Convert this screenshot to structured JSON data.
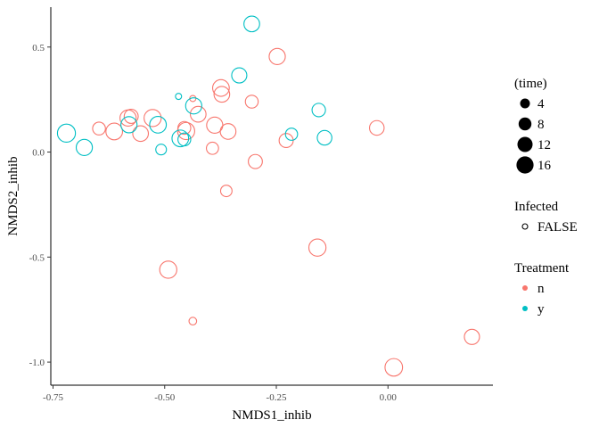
{
  "chart_data": {
    "type": "scatter",
    "title": "",
    "xlabel": "NMDS1_inhib",
    "ylabel": "NMDS2_inhib",
    "xlim": [
      -0.755,
      0.235
    ],
    "ylim": [
      -1.11,
      0.69
    ],
    "x_ticks": [
      -0.75,
      -0.5,
      -0.25,
      0.0
    ],
    "x_tick_labels": [
      "-0.75",
      "-0.50",
      "-0.25",
      "0.00"
    ],
    "y_ticks": [
      -1.0,
      -0.5,
      0.0,
      0.5
    ],
    "y_tick_labels": [
      "-1.0",
      "-0.5",
      "0.0",
      "0.5"
    ],
    "grid": false,
    "legend_position": "right",
    "size_legend": {
      "title": "(time)",
      "values": [
        4,
        8,
        12,
        16
      ],
      "labels": [
        "4",
        "8",
        "12",
        "16"
      ]
    },
    "shape_legend": {
      "title": "Infected",
      "labels": [
        "FALSE"
      ]
    },
    "color_legend": {
      "title": "Treatment",
      "labels": [
        "n",
        "y"
      ],
      "colors": [
        "#F8766D",
        "#00BFC4"
      ]
    },
    "series": [
      {
        "name": "n",
        "color": "#F8766D",
        "points": [
          {
            "x": -0.248,
            "y": 0.455,
            "time": 14
          },
          {
            "x": -0.374,
            "y": 0.305,
            "time": 15
          },
          {
            "x": -0.372,
            "y": 0.275,
            "time": 13
          },
          {
            "x": -0.437,
            "y": 0.255,
            "time": 1
          },
          {
            "x": -0.305,
            "y": 0.24,
            "time": 8
          },
          {
            "x": -0.425,
            "y": 0.18,
            "time": 13
          },
          {
            "x": -0.575,
            "y": 0.17,
            "time": 10
          },
          {
            "x": -0.582,
            "y": 0.162,
            "time": 14
          },
          {
            "x": -0.527,
            "y": 0.162,
            "time": 16
          },
          {
            "x": -0.388,
            "y": 0.128,
            "time": 14
          },
          {
            "x": -0.456,
            "y": 0.115,
            "time": 8
          },
          {
            "x": -0.647,
            "y": 0.112,
            "time": 8
          },
          {
            "x": -0.025,
            "y": 0.115,
            "time": 11
          },
          {
            "x": -0.452,
            "y": 0.1,
            "time": 16
          },
          {
            "x": -0.358,
            "y": 0.098,
            "time": 13
          },
          {
            "x": -0.613,
            "y": 0.098,
            "time": 15
          },
          {
            "x": -0.554,
            "y": 0.088,
            "time": 13
          },
          {
            "x": -0.228,
            "y": 0.055,
            "time": 10
          },
          {
            "x": -0.393,
            "y": 0.018,
            "time": 7
          },
          {
            "x": -0.297,
            "y": -0.045,
            "time": 10
          },
          {
            "x": -0.362,
            "y": -0.185,
            "time": 6
          },
          {
            "x": -0.158,
            "y": -0.455,
            "time": 16
          },
          {
            "x": -0.492,
            "y": -0.56,
            "time": 16
          },
          {
            "x": -0.437,
            "y": -0.805,
            "time": 2
          },
          {
            "x": 0.188,
            "y": -0.88,
            "time": 12
          },
          {
            "x": 0.013,
            "y": -1.025,
            "time": 17
          }
        ]
      },
      {
        "name": "y",
        "color": "#00BFC4",
        "points": [
          {
            "x": -0.305,
            "y": 0.61,
            "time": 13
          },
          {
            "x": -0.333,
            "y": 0.365,
            "time": 12
          },
          {
            "x": -0.469,
            "y": 0.265,
            "time": 1
          },
          {
            "x": -0.435,
            "y": 0.22,
            "time": 14
          },
          {
            "x": -0.155,
            "y": 0.2,
            "time": 9
          },
          {
            "x": -0.58,
            "y": 0.13,
            "time": 14
          },
          {
            "x": -0.515,
            "y": 0.13,
            "time": 15
          },
          {
            "x": -0.72,
            "y": 0.09,
            "time": 18
          },
          {
            "x": -0.216,
            "y": 0.085,
            "time": 7
          },
          {
            "x": -0.465,
            "y": 0.065,
            "time": 15
          },
          {
            "x": -0.142,
            "y": 0.068,
            "time": 11
          },
          {
            "x": -0.456,
            "y": 0.06,
            "time": 8
          },
          {
            "x": -0.68,
            "y": 0.022,
            "time": 14
          },
          {
            "x": -0.508,
            "y": 0.012,
            "time": 5
          }
        ]
      }
    ]
  }
}
